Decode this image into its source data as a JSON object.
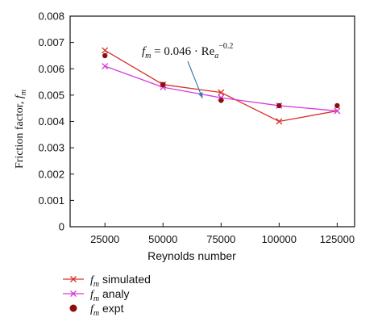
{
  "chart_data": {
    "type": "line",
    "xlabel": "Reynolds number",
    "ylabel_main": "Friction factor, ",
    "ylabel_symbol": "f",
    "ylabel_sub": "m",
    "x_ticks": [
      25000,
      50000,
      75000,
      100000,
      125000
    ],
    "x_tick_labels": [
      "25000",
      "50000",
      "75000",
      "100000",
      "125000"
    ],
    "y_ticks": [
      0,
      0.001,
      0.002,
      0.003,
      0.004,
      0.005,
      0.006,
      0.007,
      0.008
    ],
    "y_tick_labels": [
      "0",
      "0.001",
      "0.002",
      "0.003",
      "0.004",
      "0.005",
      "0.006",
      "0.007",
      "0.008"
    ],
    "xlim": [
      10000,
      132500
    ],
    "ylim": [
      0,
      0.008
    ],
    "grid": false,
    "legend_position": "bottom-left",
    "series": [
      {
        "name": "simulated",
        "symbol": "f",
        "sub": "m",
        "marker": "x",
        "color": "#d9302c",
        "line": true,
        "x": [
          25000,
          50000,
          75000,
          100000,
          125000
        ],
        "y": [
          0.0067,
          0.0054,
          0.0051,
          0.004,
          0.0044
        ]
      },
      {
        "name": "analy",
        "symbol": "f",
        "sub": "m",
        "marker": "x",
        "color": "#d63adb",
        "line": true,
        "x": [
          25000,
          50000,
          75000,
          100000,
          125000
        ],
        "y": [
          0.0061,
          0.0053,
          0.0049,
          0.0046,
          0.0044
        ]
      },
      {
        "name": "expt",
        "symbol": "f",
        "sub": "m",
        "marker": "circle",
        "color": "#8b0e10",
        "line": false,
        "x": [
          25000,
          50000,
          75000,
          100000,
          125000
        ],
        "y": [
          0.0065,
          0.0054,
          0.0048,
          0.0046,
          0.0046
        ]
      }
    ],
    "annotation": {
      "f": "f",
      "f_sub": "m",
      "eq": " = 0.046 · Re",
      "re_sub": "a",
      "exp": "−0.2",
      "arrow_color": "#3b7bb5",
      "arrow_target": {
        "x": 67000,
        "y": 0.00488
      }
    }
  }
}
